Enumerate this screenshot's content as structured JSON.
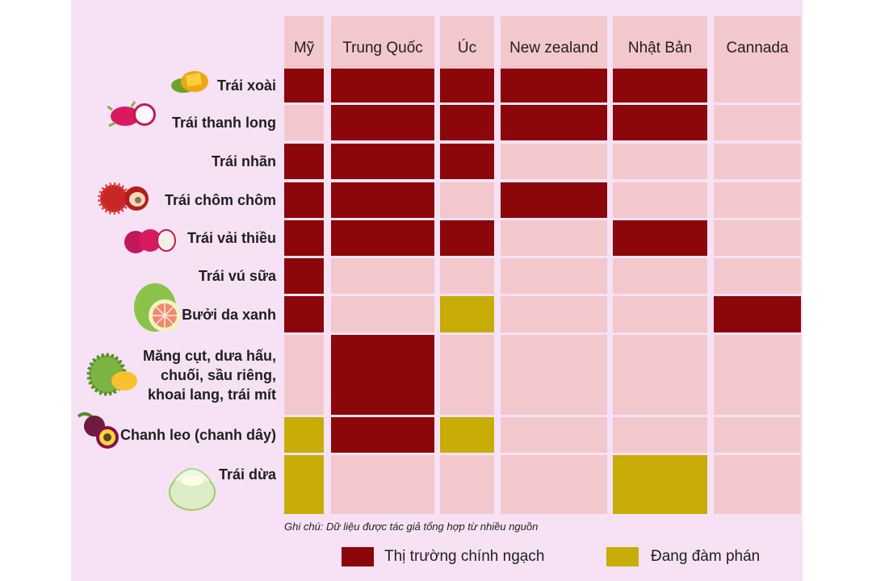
{
  "chart_data": {
    "type": "table",
    "title": "",
    "columns": [
      "Mỹ",
      "Trung Quốc",
      "Úc",
      "New zealand",
      "Nhật Bản",
      "Cannada"
    ],
    "rows": [
      {
        "label": "Trái xoài",
        "icon": "mango-icon",
        "status": [
          "official",
          "official",
          "official",
          "official",
          "official",
          "none"
        ]
      },
      {
        "label": "Trái thanh long",
        "icon": "dragon-fruit-icon",
        "status": [
          "none",
          "official",
          "official",
          "official",
          "official",
          "none"
        ]
      },
      {
        "label": "Trái nhãn",
        "icon": "",
        "status": [
          "official",
          "official",
          "official",
          "none",
          "none",
          "none"
        ]
      },
      {
        "label": "Trái chôm chôm",
        "icon": "rambutan-icon",
        "status": [
          "official",
          "official",
          "none",
          "official",
          "none",
          "none"
        ]
      },
      {
        "label": "Trái vải thiều",
        "icon": "lychee-icon",
        "status": [
          "official",
          "official",
          "official",
          "none",
          "official",
          "none"
        ]
      },
      {
        "label": "Trái vú sữa",
        "icon": "",
        "status": [
          "official",
          "none",
          "none",
          "none",
          "none",
          "none"
        ]
      },
      {
        "label": "Bưởi da xanh",
        "icon": "pomelo-icon",
        "status": [
          "official",
          "none",
          "negotiating",
          "none",
          "none",
          "official"
        ]
      },
      {
        "label": "Măng cụt, dưa hấu,\nchuối, sầu riêng,\nkhoai lang, trái mít",
        "icon": "durian-icon",
        "status": [
          "none",
          "official",
          "none",
          "none",
          "none",
          "none"
        ]
      },
      {
        "label": "Chanh leo (chanh dây)",
        "icon": "passion-fruit-icon",
        "status": [
          "negotiating",
          "official",
          "negotiating",
          "none",
          "none",
          "none"
        ]
      },
      {
        "label": "Trái dừa",
        "icon": "coconut-icon",
        "status": [
          "negotiating",
          "none",
          "none",
          "none",
          "negotiating",
          "none"
        ]
      }
    ],
    "legend": [
      {
        "key": "official",
        "label": "Thị trường chính ngạch",
        "color": "#8b0709"
      },
      {
        "key": "negotiating",
        "label": "Đang đàm phán",
        "color": "#c8ac08"
      }
    ],
    "empty_color": "#f3c8cd",
    "note": "Ghi chú: Dữ liệu được tác giả tổng hợp từ nhiều nguồn"
  }
}
